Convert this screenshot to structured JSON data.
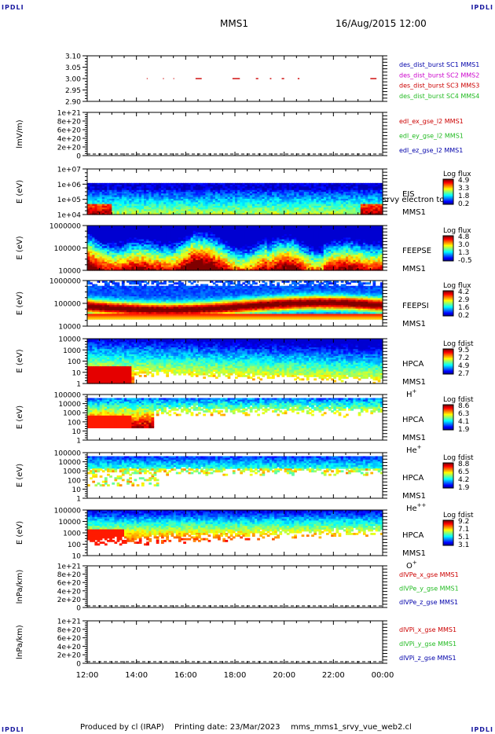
{
  "corner_label": "IPDLI",
  "header": {
    "spacecraft": "MMS1",
    "datetime": "16/Aug/2015 12:00"
  },
  "footer": {
    "produced_by": "Produced by cl (IRAP)",
    "printing_date": "Printing date: 23/Mar/2023",
    "filename": "mms_mms1_srvy_vue_web2.cl"
  },
  "colors": {
    "red": "#cc0000",
    "green": "#22bb22",
    "blue": "#0000aa",
    "magenta": "#cc00cc"
  },
  "x_axis": {
    "ticks": [
      "12:00",
      "14:00",
      "16:00",
      "18:00",
      "20:00",
      "22:00",
      "00:00"
    ]
  },
  "chart_data": [
    {
      "type": "scatter",
      "ylim": [
        2.9,
        3.1
      ],
      "yticks": [
        "3.10",
        "3.05",
        "3.00",
        "2.95",
        "2.90"
      ],
      "legend": [
        {
          "text": "des_dist_burst SC1 MMS1",
          "color": "#0000aa"
        },
        {
          "text": "des_dist_burst SC2 MMS2",
          "color": "#cc00cc"
        },
        {
          "text": "des_dist_burst SC3 MMS3",
          "color": "#cc0000"
        },
        {
          "text": "des_dist_burst SC4 MMS4",
          "color": "#22bb22"
        }
      ],
      "segments_hours": [
        [
          2.42,
          2.45
        ],
        [
          3.08,
          3.11
        ],
        [
          3.5,
          3.53
        ],
        [
          4.4,
          4.65
        ],
        [
          5.9,
          6.2
        ],
        [
          6.85,
          6.95
        ],
        [
          7.42,
          7.48
        ],
        [
          7.9,
          8.0
        ],
        [
          8.55,
          8.62
        ],
        [
          11.5,
          11.75
        ]
      ],
      "value": 3.0
    },
    {
      "type": "line",
      "ylabel": "lmV/m)",
      "yticks": [
        "1e+21",
        "8e+20",
        "6e+20",
        "4e+20",
        "2e+20",
        "0"
      ],
      "legend": [
        {
          "text": "edl_ex_gse_l2 MMS1",
          "color": "#cc0000"
        },
        {
          "text": "edl_ey_gse_l2 MMS1",
          "color": "#22bb22"
        },
        {
          "text": "edl_ez_gse_l2 MMS1",
          "color": "#0000aa"
        }
      ]
    },
    {
      "type": "heatmap",
      "ylabel": "E (eV)",
      "yticks": [
        "1e+07",
        "1e+06",
        "1e+05",
        "1e+04"
      ],
      "instrument": "EIS",
      "overlay_text": "srvy electron to",
      "sc": "MMS1",
      "cbar_title": "Log flux",
      "cbar_ticks": [
        "4.9",
        "3.3",
        "1.8",
        "0.2"
      ]
    },
    {
      "type": "heatmap",
      "ylabel": "E (eV)",
      "yticks": [
        "1000000",
        "100000",
        "10000"
      ],
      "instrument": "FEEPSE",
      "sc": "MMS1",
      "cbar_title": "Log flux",
      "cbar_ticks": [
        "4.8",
        "3.0",
        "1.3",
        "-0.5"
      ]
    },
    {
      "type": "heatmap",
      "ylabel": "E (eV)",
      "yticks": [
        "1000000",
        "100000",
        "10000"
      ],
      "instrument": "FEEPSI",
      "sc": "MMS1",
      "cbar_title": "Log flux",
      "cbar_ticks": [
        "4.2",
        "2.9",
        "1.6",
        "0.2"
      ]
    },
    {
      "type": "heatmap",
      "ylabel": "E (eV)",
      "yticks": [
        "10000",
        "1000",
        "100",
        "10",
        "1"
      ],
      "instrument": "HPCA",
      "sc": "MMS1",
      "species": "H",
      "charge": "+",
      "cbar_title": "Log fdist",
      "cbar_ticks": [
        "9.5",
        "7.2",
        "4.9",
        "2.7"
      ]
    },
    {
      "type": "heatmap",
      "ylabel": "E (eV)",
      "yticks": [
        "100000",
        "10000",
        "1000",
        "100",
        "10",
        "1"
      ],
      "instrument": "HPCA",
      "sc": "MMS1",
      "species": "He",
      "charge": "+",
      "cbar_title": "Log fdist",
      "cbar_ticks": [
        "8.6",
        "6.3",
        "4.1",
        "1.9"
      ]
    },
    {
      "type": "heatmap",
      "ylabel": "E (eV)",
      "yticks": [
        "100000",
        "10000",
        "1000",
        "100",
        "10",
        "1"
      ],
      "instrument": "HPCA",
      "sc": "MMS1",
      "species": "He",
      "charge": "++",
      "cbar_title": "Log fdist",
      "cbar_ticks": [
        "8.8",
        "6.5",
        "4.2",
        "1.9"
      ]
    },
    {
      "type": "heatmap",
      "ylabel": "E (eV)",
      "yticks": [
        "100000",
        "10000",
        "1000",
        "100",
        "10"
      ],
      "instrument": "HPCA",
      "sc": "MMS1",
      "species": "O",
      "charge": "+",
      "cbar_title": "Log fdist",
      "cbar_ticks": [
        "9.2",
        "7.1",
        "5.1",
        "3.1"
      ]
    },
    {
      "type": "line",
      "ylabel": "lnPa/km)",
      "yticks": [
        "1e+21",
        "8e+20",
        "6e+20",
        "4e+20",
        "2e+20",
        "0"
      ],
      "legend": [
        {
          "text": "dlVPe_x_gse MMS1",
          "color": "#cc0000"
        },
        {
          "text": "dlVPe_y_gse MMS1",
          "color": "#22bb22"
        },
        {
          "text": "dlVPe_z_gse MMS1",
          "color": "#0000aa"
        }
      ]
    },
    {
      "type": "line",
      "ylabel": "lnPa/km)",
      "yticks": [
        "1e+21",
        "8e+20",
        "6e+20",
        "4e+20",
        "2e+20",
        "0"
      ],
      "legend": [
        {
          "text": "dlVPi_x_gse MMS1",
          "color": "#cc0000"
        },
        {
          "text": "dlVPi_y_gse MMS1",
          "color": "#22bb22"
        },
        {
          "text": "dlVPi_z_gse MMS1",
          "color": "#0000aa"
        }
      ]
    }
  ]
}
